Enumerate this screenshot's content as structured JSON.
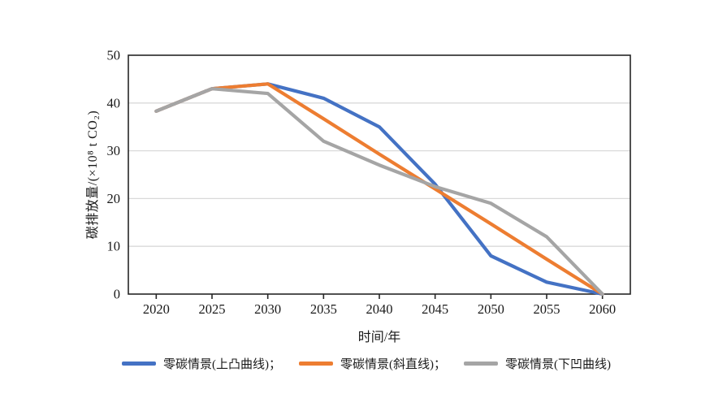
{
  "figure": {
    "background": "#ffffff",
    "axis_color": "#262626",
    "grid_color": "#d9d9d9",
    "text_color": "#1a1a1a"
  },
  "chart_data": {
    "type": "line",
    "title": "",
    "xlabel": "时间/年",
    "ylabel": "碳排放量/(×10⁸ t CO₂)",
    "categories": [
      2020,
      2025,
      2030,
      2035,
      2040,
      2045,
      2050,
      2055,
      2060
    ],
    "y_ticks": [
      0,
      10,
      20,
      30,
      40,
      50
    ],
    "ylim": [
      0,
      50
    ],
    "grid": "horizontal-at-10-20-30-40",
    "plot_border": "full-box",
    "legend_position": "bottom",
    "series": [
      {
        "name": "零碳情景(上凸曲线)",
        "legend_label": "零碳情景(上凸曲线)；",
        "color": "#4472C4",
        "values": [
          38.3,
          43,
          44,
          41,
          35,
          23,
          8,
          2.5,
          0
        ]
      },
      {
        "name": "零碳情景(斜直线)",
        "legend_label": "零碳情景(斜直线)；",
        "color": "#ED7D31",
        "values": [
          38.3,
          43,
          44,
          36.7,
          29.3,
          22,
          14.7,
          7.3,
          0
        ]
      },
      {
        "name": "零碳情景(下凹曲线)",
        "legend_label": "零碳情景(下凹曲线)",
        "color": "#A5A5A5",
        "values": [
          38.3,
          43,
          42,
          32,
          27,
          22.5,
          19,
          12,
          0
        ]
      }
    ]
  }
}
